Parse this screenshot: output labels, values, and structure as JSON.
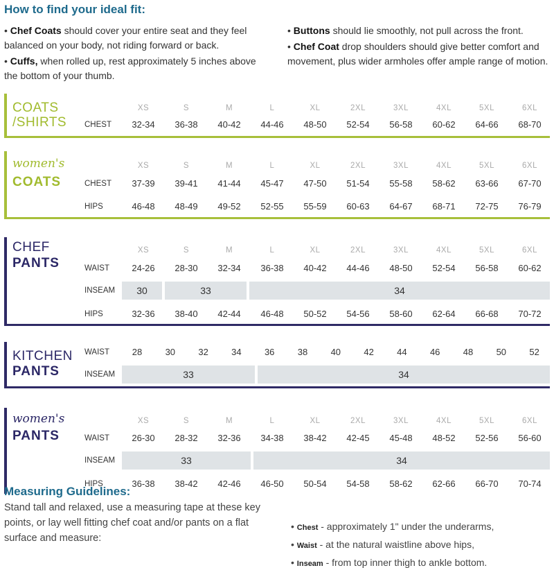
{
  "fit": {
    "title": "How to find your ideal fit:",
    "left_tips": [
      {
        "bold": "Chef Coats",
        "text": " should cover your entire seat and they feel balanced on your body, not riding forward or back."
      },
      {
        "bold": "Cuffs,",
        "text": " when rolled up, rest approximately 5 inches above the bottom of your thumb."
      }
    ],
    "right_tips": [
      {
        "bold": "Buttons",
        "text": " should lie smoothly, not pull across the front."
      },
      {
        "bold": "Chef Coat",
        "text": " drop shoulders should give better comfort and movement, plus wider armholes offer ample range of motion."
      }
    ]
  },
  "sizes": [
    "XS",
    "S",
    "M",
    "L",
    "XL",
    "2XL",
    "3XL",
    "4XL",
    "5XL",
    "6XL"
  ],
  "coats_shirts": {
    "title_line1": "COATS",
    "title_line2": "/SHIRTS",
    "chest_label": "CHEST",
    "chest": [
      "32-34",
      "36-38",
      "40-42",
      "44-46",
      "48-50",
      "52-54",
      "56-58",
      "60-62",
      "64-66",
      "68-70"
    ]
  },
  "womens_coats": {
    "title_line1": "women's",
    "title_line2": "COATS",
    "chest_label": "CHEST",
    "chest": [
      "37-39",
      "39-41",
      "41-44",
      "45-47",
      "47-50",
      "51-54",
      "55-58",
      "58-62",
      "63-66",
      "67-70"
    ],
    "hips_label": "HIPS",
    "hips": [
      "46-48",
      "48-49",
      "49-52",
      "52-55",
      "55-59",
      "60-63",
      "64-67",
      "68-71",
      "72-75",
      "76-79"
    ]
  },
  "chef_pants": {
    "title_line1": "CHEF",
    "title_line2": "PANTS",
    "waist_label": "WAIST",
    "waist": [
      "24-26",
      "28-30",
      "32-34",
      "36-38",
      "40-42",
      "44-46",
      "48-50",
      "52-54",
      "56-58",
      "60-62"
    ],
    "inseam_label": "INSEAM",
    "inseam": [
      "30",
      "33",
      "34"
    ],
    "hips_label": "HIPS",
    "hips": [
      "32-36",
      "38-40",
      "42-44",
      "46-48",
      "50-52",
      "54-56",
      "58-60",
      "62-64",
      "66-68",
      "70-72"
    ]
  },
  "kitchen_pants": {
    "title_line1": "KITCHEN",
    "title_line2": "PANTS",
    "waist_label": "WAIST",
    "waist": [
      "28",
      "30",
      "32",
      "34",
      "36",
      "38",
      "40",
      "42",
      "44",
      "46",
      "48",
      "50",
      "52"
    ],
    "inseam_label": "INSEAM",
    "inseam": [
      "33",
      "34"
    ]
  },
  "womens_pants": {
    "title_line1": "women's",
    "title_line2": "PANTS",
    "waist_label": "WAIST",
    "waist": [
      "26-30",
      "28-32",
      "32-36",
      "34-38",
      "38-42",
      "42-45",
      "45-48",
      "48-52",
      "52-56",
      "56-60"
    ],
    "inseam_label": "INSEAM",
    "inseam": [
      "33",
      "34"
    ],
    "hips_label": "HIPS",
    "hips": [
      "36-38",
      "38-42",
      "42-46",
      "46-50",
      "50-54",
      "54-58",
      "58-62",
      "62-66",
      "66-70",
      "70-74"
    ]
  },
  "guidelines": {
    "title": "Measuring Guidelines:",
    "text": "Stand tall and relaxed, use a measuring tape at these key points, or lay well fitting chef coat and/or pants on a flat surface and measure:",
    "items": [
      {
        "bold": "Chest",
        "text": " - approximately 1\" under the underarms,"
      },
      {
        "bold": "Waist",
        "text": " - at the natural waistline above hips,"
      },
      {
        "bold": "Inseam",
        "text": " - from top inner thigh to ankle bottom."
      }
    ]
  }
}
